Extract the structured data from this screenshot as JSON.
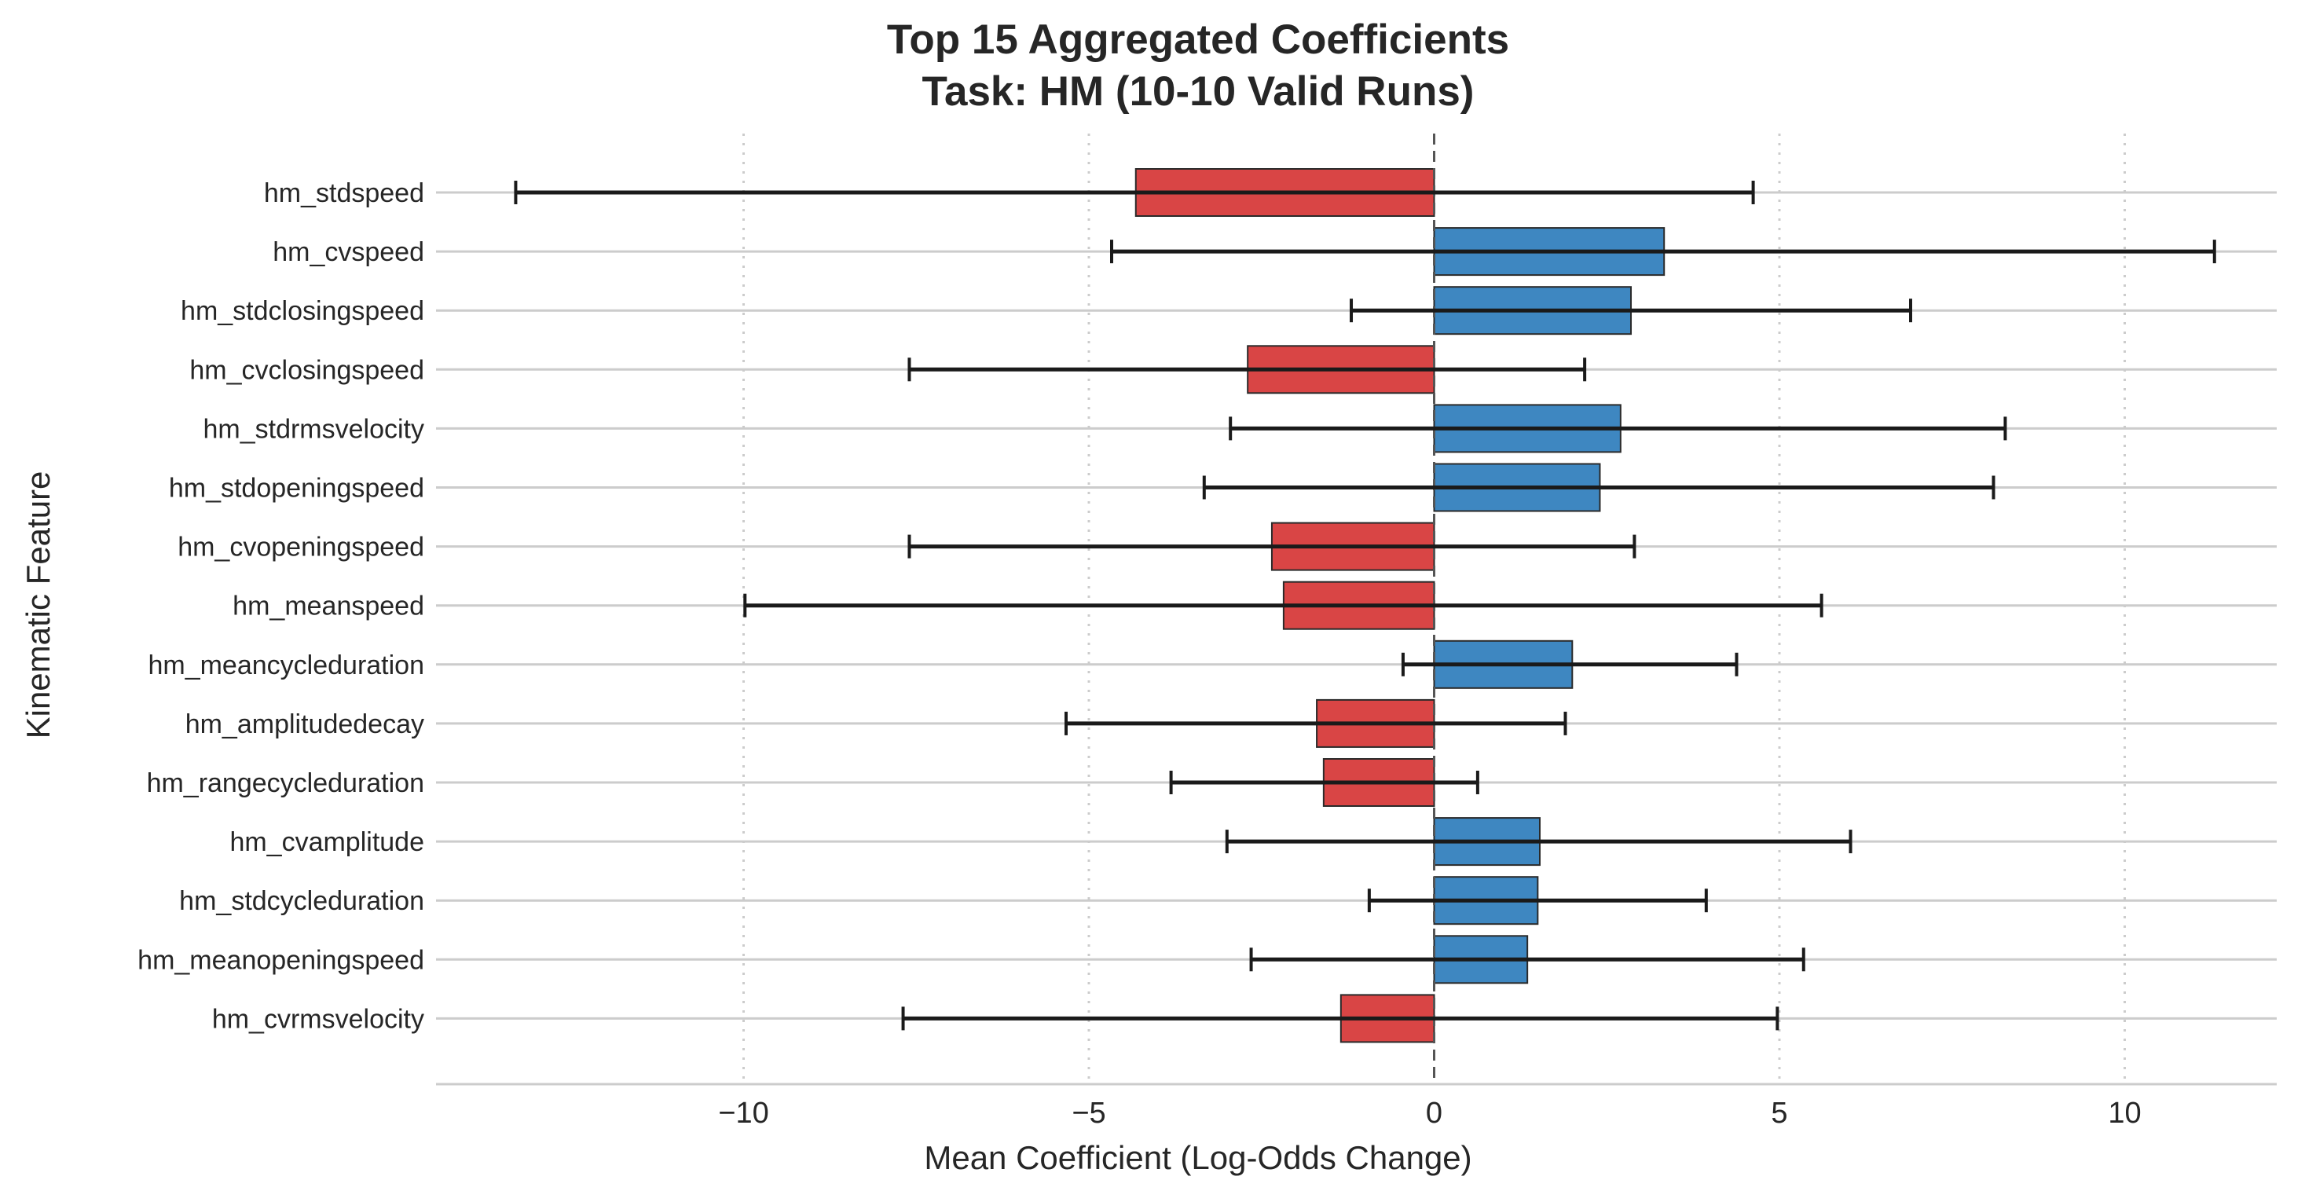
{
  "chart_data": {
    "type": "bar",
    "orientation": "horizontal",
    "title_lines": [
      "Top 15 Aggregated Coefficients",
      "Task: HM (10-10 Valid Runs)"
    ],
    "xlabel": "Mean Coefficient (Log-Odds Change)",
    "ylabel": "Kinematic Feature",
    "xlim": [
      -14.5,
      12.5
    ],
    "xticks": [
      -10,
      -5,
      0,
      5,
      10
    ],
    "xtick_labels": [
      "−10",
      "−5",
      "0",
      "5",
      "10"
    ],
    "grid": "x-dotted, y-solid",
    "zero_line": "dashed",
    "colors": {
      "positive": "#3e87c1",
      "negative": "#d94545",
      "edge": "#2a2a2a",
      "error_bar": "#1a1a1a"
    },
    "categories": [
      "hm_stdspeed",
      "hm_cvspeed",
      "hm_stdclosingspeed",
      "hm_cvclosingspeed",
      "hm_stdrmsvelocity",
      "hm_stdopeningspeed",
      "hm_cvopeningspeed",
      "hm_meanspeed",
      "hm_meancycleduration",
      "hm_amplitudedecay",
      "hm_rangecycleduration",
      "hm_cvamplitude",
      "hm_stdcycleduration",
      "hm_meanopeningspeed",
      "hm_cvrmsvelocity"
    ],
    "values": [
      -4.32,
      3.33,
      2.85,
      -2.7,
      2.7,
      2.4,
      -2.35,
      -2.18,
      2.0,
      -1.7,
      -1.6,
      1.53,
      1.5,
      1.35,
      -1.35
    ],
    "error_low": [
      -13.3,
      -4.67,
      -1.2,
      -7.6,
      -2.95,
      -3.33,
      -7.6,
      -9.98,
      -0.45,
      -5.33,
      -3.81,
      -3.0,
      -0.94,
      -2.65,
      -7.69
    ],
    "error_high": [
      4.62,
      11.3,
      6.9,
      2.18,
      8.27,
      8.1,
      2.9,
      5.61,
      4.38,
      1.9,
      0.63,
      6.03,
      3.94,
      5.35,
      4.97
    ]
  }
}
